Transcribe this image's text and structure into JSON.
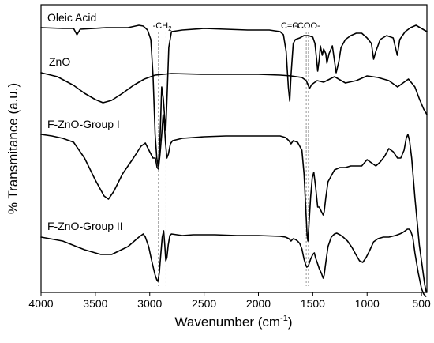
{
  "chart_data": {
    "type": "line",
    "title": "",
    "xlabel": "Wavenumber (cm",
    "xlabel_superscript": "-1",
    "xlabel_suffix": ")",
    "ylabel": "% Transmitance (a.u.)",
    "xlim": [
      4000,
      450
    ],
    "x_reversed": true,
    "y_ticks_shown": false,
    "grid": false,
    "x_ticks": [
      4000,
      3500,
      3000,
      2500,
      2000,
      1500,
      1000,
      500
    ],
    "band_annotations": [
      {
        "label": "-CH",
        "label_sub": "2",
        "lines": [
          2920,
          2850
        ]
      },
      {
        "label": "C=O",
        "lines": [
          1710
        ]
      },
      {
        "label": "-COO-",
        "lines": [
          1560,
          1540
        ]
      }
    ],
    "series": [
      {
        "name": "Oleic Acid",
        "points": [
          [
            4000,
            35
          ],
          [
            3800,
            36
          ],
          [
            3700,
            36
          ],
          [
            3670,
            44
          ],
          [
            3640,
            37
          ],
          [
            3400,
            35
          ],
          [
            3200,
            35
          ],
          [
            3100,
            32
          ],
          [
            3060,
            33
          ],
          [
            3020,
            38
          ],
          [
            2990,
            50
          ],
          [
            2970,
            95
          ],
          [
            2950,
            170
          ],
          [
            2935,
            200
          ],
          [
            2922,
            210
          ],
          [
            2905,
            175
          ],
          [
            2890,
            110
          ],
          [
            2875,
            125
          ],
          [
            2862,
            150
          ],
          [
            2852,
            165
          ],
          [
            2840,
            120
          ],
          [
            2825,
            60
          ],
          [
            2800,
            40
          ],
          [
            2700,
            38
          ],
          [
            2500,
            36
          ],
          [
            2300,
            37
          ],
          [
            2100,
            38
          ],
          [
            1900,
            38
          ],
          [
            1800,
            40
          ],
          [
            1770,
            44
          ],
          [
            1745,
            65
          ],
          [
            1725,
            110
          ],
          [
            1712,
            128
          ],
          [
            1700,
            95
          ],
          [
            1680,
            55
          ],
          [
            1660,
            50
          ],
          [
            1620,
            48
          ],
          [
            1580,
            45
          ],
          [
            1540,
            45
          ],
          [
            1500,
            47
          ],
          [
            1480,
            55
          ],
          [
            1465,
            75
          ],
          [
            1455,
            90
          ],
          [
            1440,
            75
          ],
          [
            1430,
            58
          ],
          [
            1413,
            70
          ],
          [
            1400,
            62
          ],
          [
            1380,
            68
          ],
          [
            1370,
            80
          ],
          [
            1350,
            68
          ],
          [
            1320,
            58
          ],
          [
            1285,
            92
          ],
          [
            1260,
            78
          ],
          [
            1240,
            60
          ],
          [
            1200,
            50
          ],
          [
            1150,
            45
          ],
          [
            1100,
            42
          ],
          [
            1050,
            42
          ],
          [
            1000,
            48
          ],
          [
            960,
            55
          ],
          [
            940,
            75
          ],
          [
            920,
            65
          ],
          [
            880,
            50
          ],
          [
            820,
            45
          ],
          [
            760,
            48
          ],
          [
            722,
            70
          ],
          [
            700,
            50
          ],
          [
            650,
            40
          ],
          [
            600,
            35
          ],
          [
            550,
            32
          ],
          [
            500,
            36
          ],
          [
            450,
            40
          ]
        ]
      },
      {
        "name": "ZnO",
        "points": [
          [
            4000,
            92
          ],
          [
            3850,
            97
          ],
          [
            3700,
            108
          ],
          [
            3600,
            118
          ],
          [
            3500,
            126
          ],
          [
            3430,
            130
          ],
          [
            3350,
            127
          ],
          [
            3250,
            118
          ],
          [
            3150,
            108
          ],
          [
            3050,
            100
          ],
          [
            2950,
            95
          ],
          [
            2800,
            93
          ],
          [
            2500,
            94
          ],
          [
            2200,
            94
          ],
          [
            2000,
            94
          ],
          [
            1800,
            95
          ],
          [
            1700,
            96
          ],
          [
            1600,
            98
          ],
          [
            1560,
            102
          ],
          [
            1530,
            112
          ],
          [
            1510,
            107
          ],
          [
            1460,
            102
          ],
          [
            1400,
            104
          ],
          [
            1300,
            97
          ],
          [
            1200,
            105
          ],
          [
            1100,
            102
          ],
          [
            1000,
            96
          ],
          [
            900,
            98
          ],
          [
            800,
            102
          ],
          [
            720,
            110
          ],
          [
            670,
            105
          ],
          [
            620,
            100
          ],
          [
            560,
            110
          ],
          [
            520,
            125
          ],
          [
            480,
            138
          ],
          [
            450,
            145
          ]
        ]
      },
      {
        "name": "F-ZnO-Group I",
        "points": [
          [
            4000,
            170
          ],
          [
            3900,
            172
          ],
          [
            3800,
            175
          ],
          [
            3700,
            180
          ],
          [
            3600,
            200
          ],
          [
            3500,
            228
          ],
          [
            3420,
            248
          ],
          [
            3380,
            252
          ],
          [
            3330,
            242
          ],
          [
            3250,
            220
          ],
          [
            3150,
            200
          ],
          [
            3080,
            185
          ],
          [
            3040,
            181
          ],
          [
            3000,
            192
          ],
          [
            2970,
            200
          ],
          [
            2948,
            200
          ],
          [
            2932,
            212
          ],
          [
            2920,
            214
          ],
          [
            2905,
            195
          ],
          [
            2890,
            170
          ],
          [
            2877,
            145
          ],
          [
            2865,
            158
          ],
          [
            2855,
            180
          ],
          [
            2842,
            200
          ],
          [
            2828,
            195
          ],
          [
            2810,
            182
          ],
          [
            2790,
            178
          ],
          [
            2700,
            175
          ],
          [
            2500,
            173
          ],
          [
            2300,
            172
          ],
          [
            2100,
            172
          ],
          [
            1900,
            172
          ],
          [
            1800,
            172
          ],
          [
            1750,
            174
          ],
          [
            1720,
            178
          ],
          [
            1700,
            182
          ],
          [
            1680,
            178
          ],
          [
            1640,
            180
          ],
          [
            1600,
            190
          ],
          [
            1580,
            220
          ],
          [
            1565,
            262
          ],
          [
            1552,
            298
          ],
          [
            1545,
            305
          ],
          [
            1535,
            285
          ],
          [
            1520,
            250
          ],
          [
            1505,
            225
          ],
          [
            1490,
            218
          ],
          [
            1475,
            235
          ],
          [
            1455,
            262
          ],
          [
            1440,
            262
          ],
          [
            1420,
            268
          ],
          [
            1405,
            272
          ],
          [
            1395,
            268
          ],
          [
            1380,
            250
          ],
          [
            1360,
            230
          ],
          [
            1300,
            215
          ],
          [
            1250,
            212
          ],
          [
            1200,
            212
          ],
          [
            1150,
            210
          ],
          [
            1100,
            210
          ],
          [
            1050,
            210
          ],
          [
            1000,
            202
          ],
          [
            960,
            206
          ],
          [
            920,
            210
          ],
          [
            880,
            205
          ],
          [
            840,
            198
          ],
          [
            800,
            188
          ],
          [
            760,
            192
          ],
          [
            720,
            200
          ],
          [
            690,
            200
          ],
          [
            660,
            190
          ],
          [
            640,
            175
          ],
          [
            625,
            170
          ],
          [
            610,
            178
          ],
          [
            590,
            200
          ],
          [
            560,
            250
          ],
          [
            520,
            310
          ],
          [
            490,
            340
          ],
          [
            470,
            360
          ],
          [
            455,
            370
          ]
        ]
      },
      {
        "name": "F-ZnO-Group II",
        "points": [
          [
            4000,
            300
          ],
          [
            3800,
            305
          ],
          [
            3600,
            316
          ],
          [
            3450,
            322
          ],
          [
            3350,
            322
          ],
          [
            3200,
            312
          ],
          [
            3100,
            300
          ],
          [
            3060,
            296
          ],
          [
            3040,
            300
          ],
          [
            3010,
            312
          ],
          [
            2985,
            328
          ],
          [
            2965,
            340
          ],
          [
            2950,
            348
          ],
          [
            2935,
            354
          ],
          [
            2925,
            356
          ],
          [
            2912,
            345
          ],
          [
            2900,
            325
          ],
          [
            2885,
            300
          ],
          [
            2872,
            292
          ],
          [
            2862,
            310
          ],
          [
            2852,
            330
          ],
          [
            2842,
            326
          ],
          [
            2830,
            310
          ],
          [
            2815,
            298
          ],
          [
            2800,
            296
          ],
          [
            2700,
            298
          ],
          [
            2600,
            297
          ],
          [
            2500,
            297
          ],
          [
            2400,
            297
          ],
          [
            2200,
            298
          ],
          [
            2000,
            298
          ],
          [
            1800,
            299
          ],
          [
            1750,
            300
          ],
          [
            1720,
            302
          ],
          [
            1700,
            305
          ],
          [
            1680,
            302
          ],
          [
            1660,
            303
          ],
          [
            1640,
            305
          ],
          [
            1620,
            308
          ],
          [
            1600,
            315
          ],
          [
            1580,
            328
          ],
          [
            1565,
            335
          ],
          [
            1555,
            338
          ],
          [
            1540,
            336
          ],
          [
            1520,
            328
          ],
          [
            1500,
            322
          ],
          [
            1485,
            320
          ],
          [
            1475,
            326
          ],
          [
            1460,
            332
          ],
          [
            1440,
            340
          ],
          [
            1420,
            346
          ],
          [
            1405,
            352
          ],
          [
            1395,
            348
          ],
          [
            1380,
            332
          ],
          [
            1360,
            312
          ],
          [
            1330,
            300
          ],
          [
            1300,
            296
          ],
          [
            1280,
            295
          ],
          [
            1250,
            297
          ],
          [
            1220,
            300
          ],
          [
            1180,
            305
          ],
          [
            1140,
            313
          ],
          [
            1100,
            323
          ],
          [
            1070,
            330
          ],
          [
            1040,
            332
          ],
          [
            1010,
            326
          ],
          [
            980,
            318
          ],
          [
            940,
            306
          ],
          [
            900,
            302
          ],
          [
            850,
            300
          ],
          [
            800,
            300
          ],
          [
            740,
            298
          ],
          [
            700,
            296
          ],
          [
            670,
            294
          ],
          [
            650,
            292
          ],
          [
            630,
            290
          ],
          [
            615,
            290
          ],
          [
            600,
            292
          ],
          [
            580,
            300
          ],
          [
            560,
            320
          ],
          [
            530,
            345
          ],
          [
            500,
            365
          ],
          [
            480,
            372
          ],
          [
            460,
            375
          ]
        ]
      }
    ]
  }
}
